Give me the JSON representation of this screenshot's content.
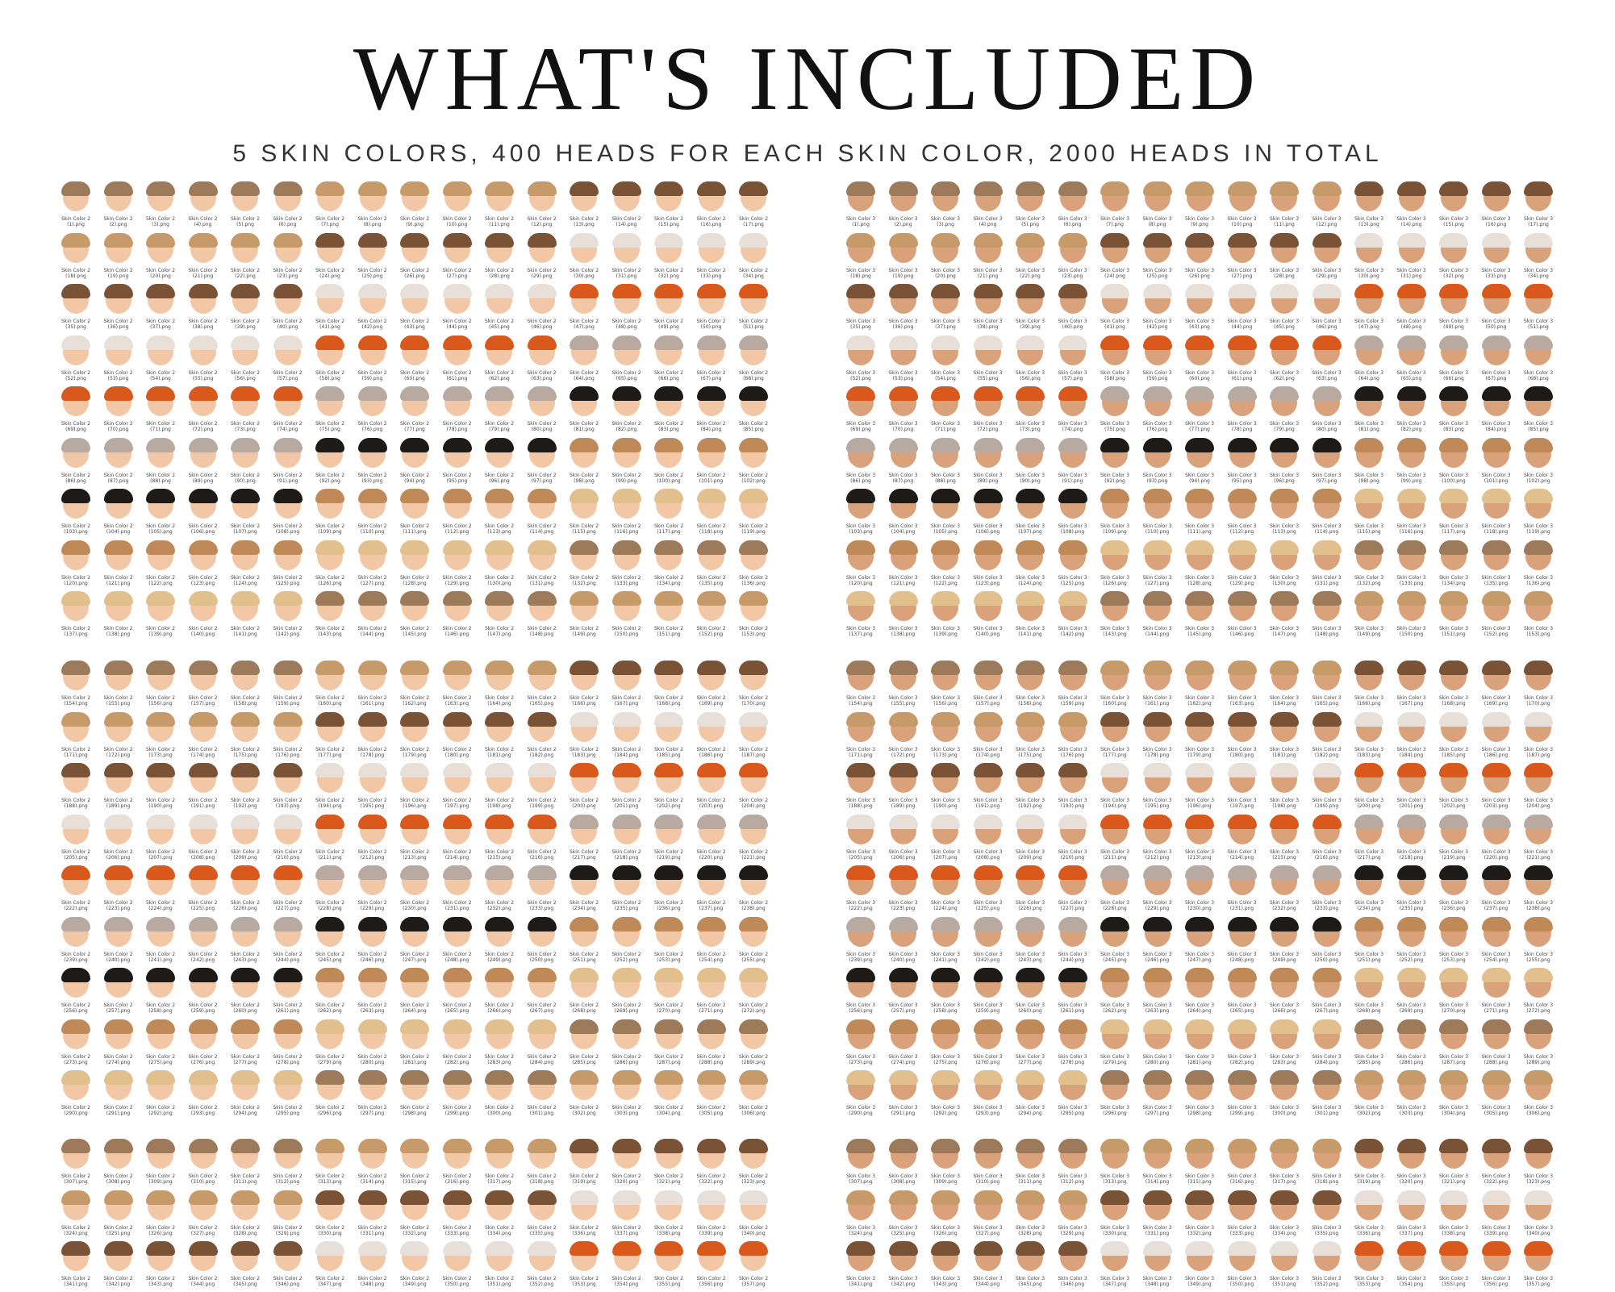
{
  "header": {
    "title": "WHAT'S INCLUDED",
    "subtitle": "5 SKIN COLORS, 400 HEADS FOR EACH SKIN COLOR, 2000 HEADS IN TOTAL"
  },
  "panels": [
    {
      "label": "Skin Color 2",
      "start": 1,
      "cols": 17,
      "rows": 9,
      "skin": "#f2c7a6"
    },
    {
      "label": "Skin Color 3",
      "start": 1,
      "cols": 17,
      "rows": 9,
      "skin": "#d9a27a"
    },
    {
      "label": "Skin Color 2",
      "start": 154,
      "cols": 17,
      "rows": 9,
      "skin": "#f2c7a6"
    },
    {
      "label": "Skin Color 3",
      "start": 154,
      "cols": 17,
      "rows": 9,
      "skin": "#d9a27a"
    },
    {
      "label": "Skin Color 2",
      "start": 307,
      "cols": 17,
      "rows": 3,
      "skin": "#f2c7a6"
    },
    {
      "label": "Skin Color 3",
      "start": 307,
      "cols": 17,
      "rows": 3,
      "skin": "#d9a27a"
    }
  ],
  "hair_colors": [
    "#9c7a5a",
    "#c79a6a",
    "#7a5236",
    "#e8e0d8",
    "#d9581c",
    "#b8aaa0",
    "#1e1a18",
    "#c08a58",
    "#e2c08e"
  ],
  "file_ext": ".png"
}
